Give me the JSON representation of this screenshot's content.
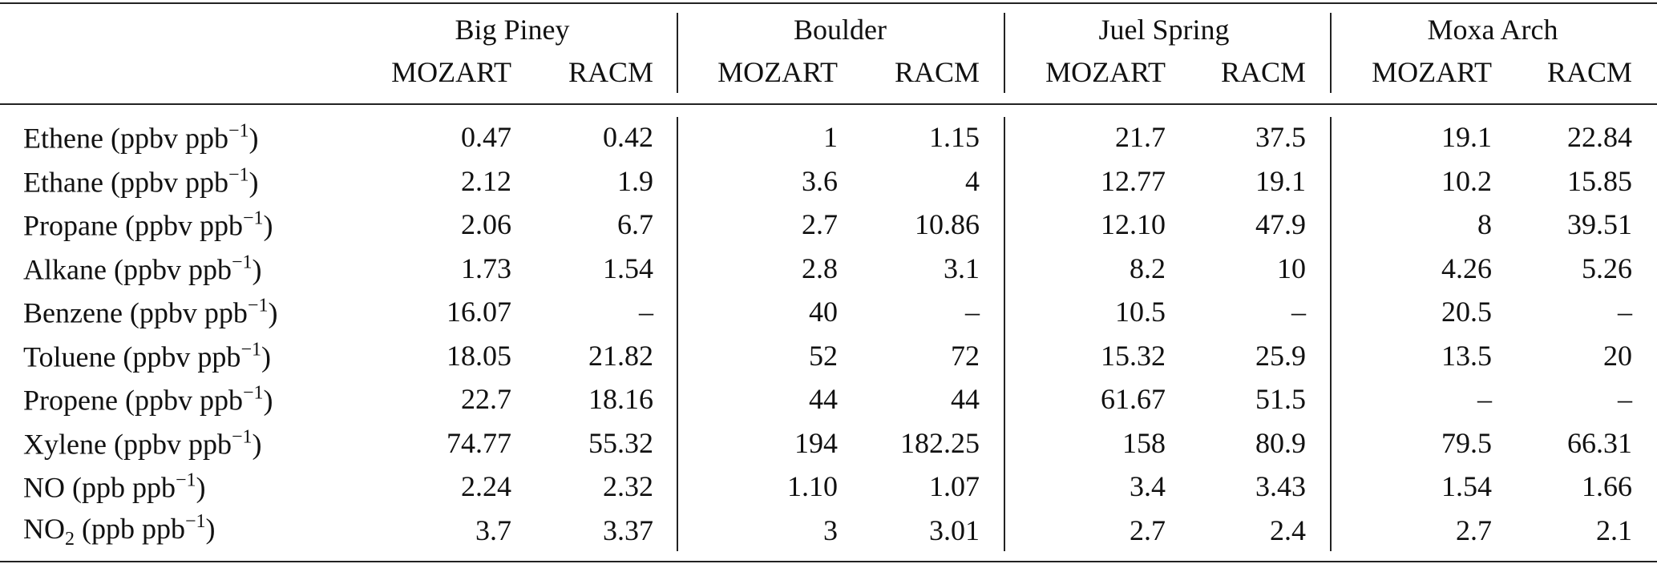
{
  "table": {
    "groups": [
      {
        "name": "Big Piney",
        "models": [
          "MOZART",
          "RACM"
        ]
      },
      {
        "name": "Boulder",
        "models": [
          "MOZART",
          "RACM"
        ]
      },
      {
        "name": "Juel Spring",
        "models": [
          "MOZART",
          "RACM"
        ]
      },
      {
        "name": "Moxa Arch",
        "models": [
          "MOZART",
          "RACM"
        ]
      }
    ],
    "rows": [
      {
        "label": [
          {
            "text": "Ethene (ppbv ppb"
          },
          {
            "text": "−1",
            "script": "sup"
          },
          {
            "text": ")"
          }
        ],
        "values": [
          "0.47",
          "0.42",
          "1",
          "1.15",
          "21.7",
          "37.5",
          "19.1",
          "22.84"
        ]
      },
      {
        "label": [
          {
            "text": "Ethane (ppbv ppb"
          },
          {
            "text": "−1",
            "script": "sup"
          },
          {
            "text": ")"
          }
        ],
        "values": [
          "2.12",
          "1.9",
          "3.6",
          "4",
          "12.77",
          "19.1",
          "10.2",
          "15.85"
        ]
      },
      {
        "label": [
          {
            "text": "Propane (ppbv ppb"
          },
          {
            "text": "−1",
            "script": "sup"
          },
          {
            "text": ")"
          }
        ],
        "values": [
          "2.06",
          "6.7",
          "2.7",
          "10.86",
          "12.10",
          "47.9",
          "8",
          "39.51"
        ]
      },
      {
        "label": [
          {
            "text": "Alkane (ppbv ppb"
          },
          {
            "text": "−1",
            "script": "sup"
          },
          {
            "text": ")"
          }
        ],
        "values": [
          "1.73",
          "1.54",
          "2.8",
          "3.1",
          "8.2",
          "10",
          "4.26",
          "5.26"
        ]
      },
      {
        "label": [
          {
            "text": "Benzene (ppbv ppb"
          },
          {
            "text": "−1",
            "script": "sup"
          },
          {
            "text": ")"
          }
        ],
        "values": [
          "16.07",
          "–",
          "40",
          "–",
          "10.5",
          "–",
          "20.5",
          "–"
        ]
      },
      {
        "label": [
          {
            "text": "Toluene (ppbv ppb"
          },
          {
            "text": "−1",
            "script": "sup"
          },
          {
            "text": ")"
          }
        ],
        "values": [
          "18.05",
          "21.82",
          "52",
          "72",
          "15.32",
          "25.9",
          "13.5",
          "20"
        ]
      },
      {
        "label": [
          {
            "text": "Propene (ppbv ppb"
          },
          {
            "text": "−1",
            "script": "sup"
          },
          {
            "text": ")"
          }
        ],
        "values": [
          "22.7",
          "18.16",
          "44",
          "44",
          "61.67",
          "51.5",
          "–",
          "–"
        ]
      },
      {
        "label": [
          {
            "text": "Xylene (ppbv ppb"
          },
          {
            "text": "−1",
            "script": "sup"
          },
          {
            "text": ")"
          }
        ],
        "values": [
          "74.77",
          "55.32",
          "194",
          "182.25",
          "158",
          "80.9",
          "79.5",
          "66.31"
        ]
      },
      {
        "label": [
          {
            "text": "NO (ppb ppb"
          },
          {
            "text": "−1",
            "script": "sup"
          },
          {
            "text": ")"
          }
        ],
        "values": [
          "2.24",
          "2.32",
          "1.10",
          "1.07",
          "3.4",
          "3.43",
          "1.54",
          "1.66"
        ]
      },
      {
        "label": [
          {
            "text": "NO"
          },
          {
            "text": "2",
            "script": "sub"
          },
          {
            "text": " (ppb ppb"
          },
          {
            "text": "−1",
            "script": "sup"
          },
          {
            "text": ")"
          }
        ],
        "values": [
          "3.7",
          "3.37",
          "3",
          "3.01",
          "2.7",
          "2.4",
          "2.7",
          "2.1"
        ]
      }
    ]
  }
}
